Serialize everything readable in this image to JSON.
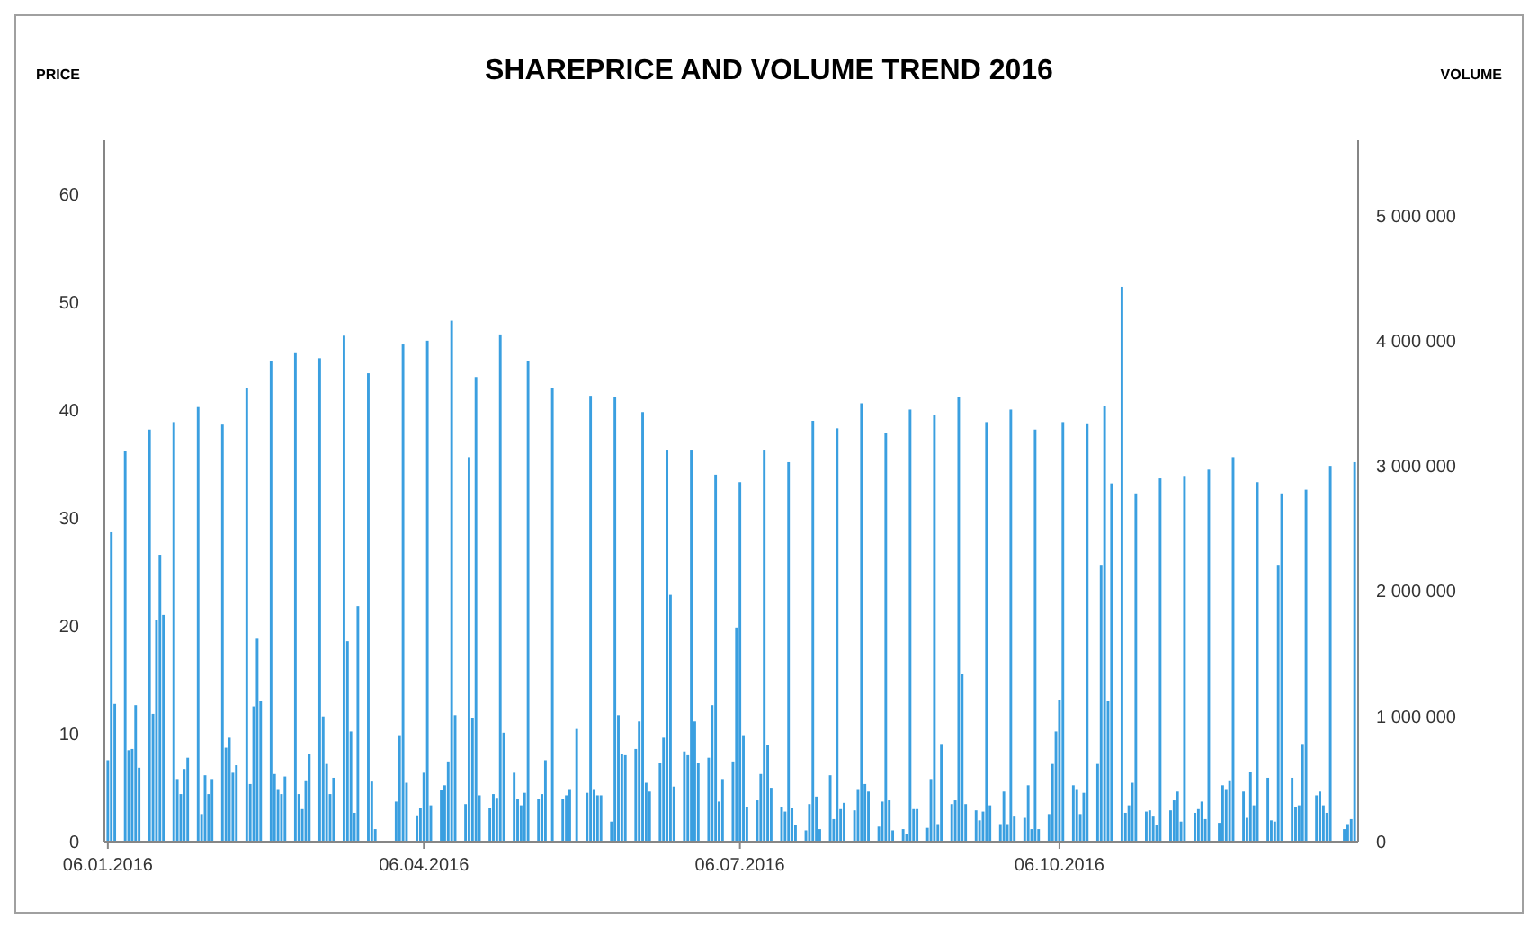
{
  "chart_data": {
    "type": "bar",
    "title": "SHAREPRICE AND VOLUME TREND 2016",
    "ylabel": "PRICE",
    "y2label": "VOLUME",
    "xlim": [
      "2016-01-05",
      "2016-12-31"
    ],
    "xticks": [
      {
        "value": "2016-01-06",
        "label": "06.01.2016"
      },
      {
        "value": "2016-04-06",
        "label": "06.04.2016"
      },
      {
        "value": "2016-07-06",
        "label": "06.07.2016"
      },
      {
        "value": "2016-10-06",
        "label": "06.10.2016"
      }
    ],
    "ylim": [
      0,
      65
    ],
    "yticks": [
      0,
      10,
      20,
      30,
      40,
      50,
      60
    ],
    "y2lim": [
      0,
      5600000
    ],
    "y2ticks": [
      0,
      {
        "value": 1000000,
        "label": "1 000 000"
      },
      {
        "value": 2000000,
        "label": "2 000 000"
      },
      {
        "value": 3000000,
        "label": "3 000 000"
      },
      {
        "value": 4000000,
        "label": "4 000 000"
      },
      {
        "value": 5000000,
        "label": "5 000 000"
      }
    ],
    "grid": false,
    "x": [
      "2016-01-06",
      "2016-01-07",
      "2016-01-08",
      "2016-01-11",
      "2016-01-12",
      "2016-01-13",
      "2016-01-14",
      "2016-01-15",
      "2016-01-18",
      "2016-01-19",
      "2016-01-20",
      "2016-01-21",
      "2016-01-22",
      "2016-01-25",
      "2016-01-26",
      "2016-01-27",
      "2016-01-28",
      "2016-01-29",
      "2016-02-01",
      "2016-02-02",
      "2016-02-03",
      "2016-02-04",
      "2016-02-05",
      "2016-02-08",
      "2016-02-09",
      "2016-02-10",
      "2016-02-11",
      "2016-02-12",
      "2016-02-15",
      "2016-02-16",
      "2016-02-17",
      "2016-02-18",
      "2016-02-19",
      "2016-02-22",
      "2016-02-23",
      "2016-02-24",
      "2016-02-25",
      "2016-02-26",
      "2016-02-29",
      "2016-03-01",
      "2016-03-02",
      "2016-03-03",
      "2016-03-04",
      "2016-03-07",
      "2016-03-08",
      "2016-03-09",
      "2016-03-10",
      "2016-03-11",
      "2016-03-14",
      "2016-03-15",
      "2016-03-16",
      "2016-03-17",
      "2016-03-18",
      "2016-03-21",
      "2016-03-22",
      "2016-03-23",
      "2016-03-29",
      "2016-03-30",
      "2016-03-31",
      "2016-04-01",
      "2016-04-04",
      "2016-04-05",
      "2016-04-06",
      "2016-04-07",
      "2016-04-08",
      "2016-04-11",
      "2016-04-12",
      "2016-04-13",
      "2016-04-14",
      "2016-04-15",
      "2016-04-18",
      "2016-04-19",
      "2016-04-20",
      "2016-04-21",
      "2016-04-22",
      "2016-04-25",
      "2016-04-26",
      "2016-04-27",
      "2016-04-28",
      "2016-04-29",
      "2016-05-02",
      "2016-05-03",
      "2016-05-04",
      "2016-05-05",
      "2016-05-06",
      "2016-05-09",
      "2016-05-10",
      "2016-05-11",
      "2016-05-13",
      "2016-05-16",
      "2016-05-17",
      "2016-05-18",
      "2016-05-20",
      "2016-05-23",
      "2016-05-24",
      "2016-05-25",
      "2016-05-26",
      "2016-05-27",
      "2016-05-30",
      "2016-05-31",
      "2016-06-01",
      "2016-06-02",
      "2016-06-03",
      "2016-06-06",
      "2016-06-07",
      "2016-06-08",
      "2016-06-09",
      "2016-06-10",
      "2016-06-13",
      "2016-06-14",
      "2016-06-15",
      "2016-06-16",
      "2016-06-17",
      "2016-06-20",
      "2016-06-21",
      "2016-06-22",
      "2016-06-23",
      "2016-06-24",
      "2016-06-27",
      "2016-06-28",
      "2016-06-29",
      "2016-06-30",
      "2016-07-01",
      "2016-07-04",
      "2016-07-05",
      "2016-07-06",
      "2016-07-07",
      "2016-07-08",
      "2016-07-11",
      "2016-07-12",
      "2016-07-13",
      "2016-07-14",
      "2016-07-15",
      "2016-07-18",
      "2016-07-19",
      "2016-07-20",
      "2016-07-21",
      "2016-07-22",
      "2016-07-25",
      "2016-07-26",
      "2016-07-27",
      "2016-07-28",
      "2016-07-29",
      "2016-08-01",
      "2016-08-02",
      "2016-08-03",
      "2016-08-04",
      "2016-08-05",
      "2016-08-08",
      "2016-08-09",
      "2016-08-10",
      "2016-08-11",
      "2016-08-12",
      "2016-08-15",
      "2016-08-16",
      "2016-08-17",
      "2016-08-18",
      "2016-08-19",
      "2016-08-22",
      "2016-08-23",
      "2016-08-24",
      "2016-08-25",
      "2016-08-26",
      "2016-08-29",
      "2016-08-30",
      "2016-08-31",
      "2016-09-01",
      "2016-09-02",
      "2016-09-05",
      "2016-09-06",
      "2016-09-07",
      "2016-09-08",
      "2016-09-09",
      "2016-09-12",
      "2016-09-13",
      "2016-09-14",
      "2016-09-15",
      "2016-09-16",
      "2016-09-19",
      "2016-09-20",
      "2016-09-21",
      "2016-09-22",
      "2016-09-23",
      "2016-09-26",
      "2016-09-27",
      "2016-09-28",
      "2016-09-29",
      "2016-09-30",
      "2016-10-03",
      "2016-10-04",
      "2016-10-05",
      "2016-10-06",
      "2016-10-07",
      "2016-10-10",
      "2016-10-11",
      "2016-10-12",
      "2016-10-13",
      "2016-10-14",
      "2016-10-17",
      "2016-10-18",
      "2016-10-19",
      "2016-10-20",
      "2016-10-21",
      "2016-10-24",
      "2016-10-25",
      "2016-10-26",
      "2016-10-27",
      "2016-10-28",
      "2016-10-31",
      "2016-11-01",
      "2016-11-02",
      "2016-11-03",
      "2016-11-04",
      "2016-11-07",
      "2016-11-08",
      "2016-11-09",
      "2016-11-10",
      "2016-11-11",
      "2016-11-14",
      "2016-11-15",
      "2016-11-16",
      "2016-11-17",
      "2016-11-18",
      "2016-11-21",
      "2016-11-22",
      "2016-11-23",
      "2016-11-24",
      "2016-11-25",
      "2016-11-28",
      "2016-11-29",
      "2016-11-30",
      "2016-12-01",
      "2016-12-02",
      "2016-12-05",
      "2016-12-06",
      "2016-12-07",
      "2016-12-08",
      "2016-12-09",
      "2016-12-12",
      "2016-12-13",
      "2016-12-14",
      "2016-12-15",
      "2016-12-16",
      "2016-12-19",
      "2016-12-20",
      "2016-12-21",
      "2016-12-22",
      "2016-12-23",
      "2016-12-27",
      "2016-12-28",
      "2016-12-29",
      "2016-12-30"
    ],
    "series": [
      {
        "axis": "y2",
        "color": "#3a9fe0",
        "values": [
          650000,
          2470000,
          1100000,
          3120000,
          730000,
          740000,
          1090000,
          590000,
          3290000,
          1020000,
          1770000,
          2290000,
          1810000,
          3350000,
          500000,
          380000,
          580000,
          670000,
          3470000,
          220000,
          530000,
          380000,
          500000,
          3330000,
          750000,
          830000,
          550000,
          610000,
          3620000,
          460000,
          1080000,
          1620000,
          1120000,
          3840000,
          540000,
          420000,
          380000,
          520000,
          3900000,
          380000,
          260000,
          490000,
          700000,
          3860000,
          1000000,
          620000,
          380000,
          510000,
          4040000,
          1600000,
          880000,
          230000,
          1880000,
          3740000,
          480000,
          100000,
          320000,
          850000,
          3970000,
          470000,
          210000,
          270000,
          550000,
          4000000,
          290000,
          410000,
          450000,
          640000,
          4160000,
          1010000,
          300000,
          3070000,
          990000,
          3710000,
          370000,
          270000,
          380000,
          350000,
          4050000,
          870000,
          550000,
          340000,
          290000,
          390000,
          3840000,
          340000,
          380000,
          650000,
          3620000,
          340000,
          370000,
          420000,
          900000,
          390000,
          3560000,
          420000,
          370000,
          370000,
          160000,
          3550000,
          1010000,
          700000,
          690000,
          740000,
          960000,
          3430000,
          470000,
          400000,
          630000,
          830000,
          3130000,
          1970000,
          440000,
          720000,
          690000,
          3130000,
          960000,
          630000,
          670000,
          1090000,
          2930000,
          320000,
          500000,
          640000,
          1710000,
          2870000,
          850000,
          280000,
          330000,
          540000,
          3130000,
          770000,
          430000,
          280000,
          240000,
          3030000,
          270000,
          130000,
          90000,
          300000,
          3360000,
          360000,
          100000,
          530000,
          180000,
          3300000,
          260000,
          310000,
          250000,
          420000,
          3500000,
          460000,
          400000,
          120000,
          320000,
          3260000,
          330000,
          90000,
          100000,
          60000,
          3450000,
          260000,
          260000,
          110000,
          500000,
          3410000,
          140000,
          780000,
          300000,
          330000,
          3550000,
          1340000,
          300000,
          250000,
          170000,
          240000,
          3350000,
          290000,
          140000,
          400000,
          140000,
          3450000,
          200000,
          190000,
          450000,
          100000,
          3290000,
          100000,
          220000,
          620000,
          880000,
          1130000,
          3350000,
          450000,
          420000,
          220000,
          390000,
          3340000,
          620000,
          2210000,
          3480000,
          1120000,
          2860000,
          4430000,
          230000,
          290000,
          470000,
          2780000,
          240000,
          250000,
          200000,
          130000,
          2900000,
          250000,
          330000,
          400000,
          160000,
          2920000,
          230000,
          260000,
          320000,
          180000,
          2970000,
          150000,
          450000,
          420000,
          490000,
          3070000,
          400000,
          190000,
          560000,
          290000,
          2870000,
          510000,
          170000,
          160000,
          2210000,
          2780000,
          510000,
          280000,
          290000,
          780000,
          2810000,
          370000,
          400000,
          290000,
          230000,
          3000000,
          100000,
          140000,
          180000,
          3030000
        ]
      }
    ]
  }
}
